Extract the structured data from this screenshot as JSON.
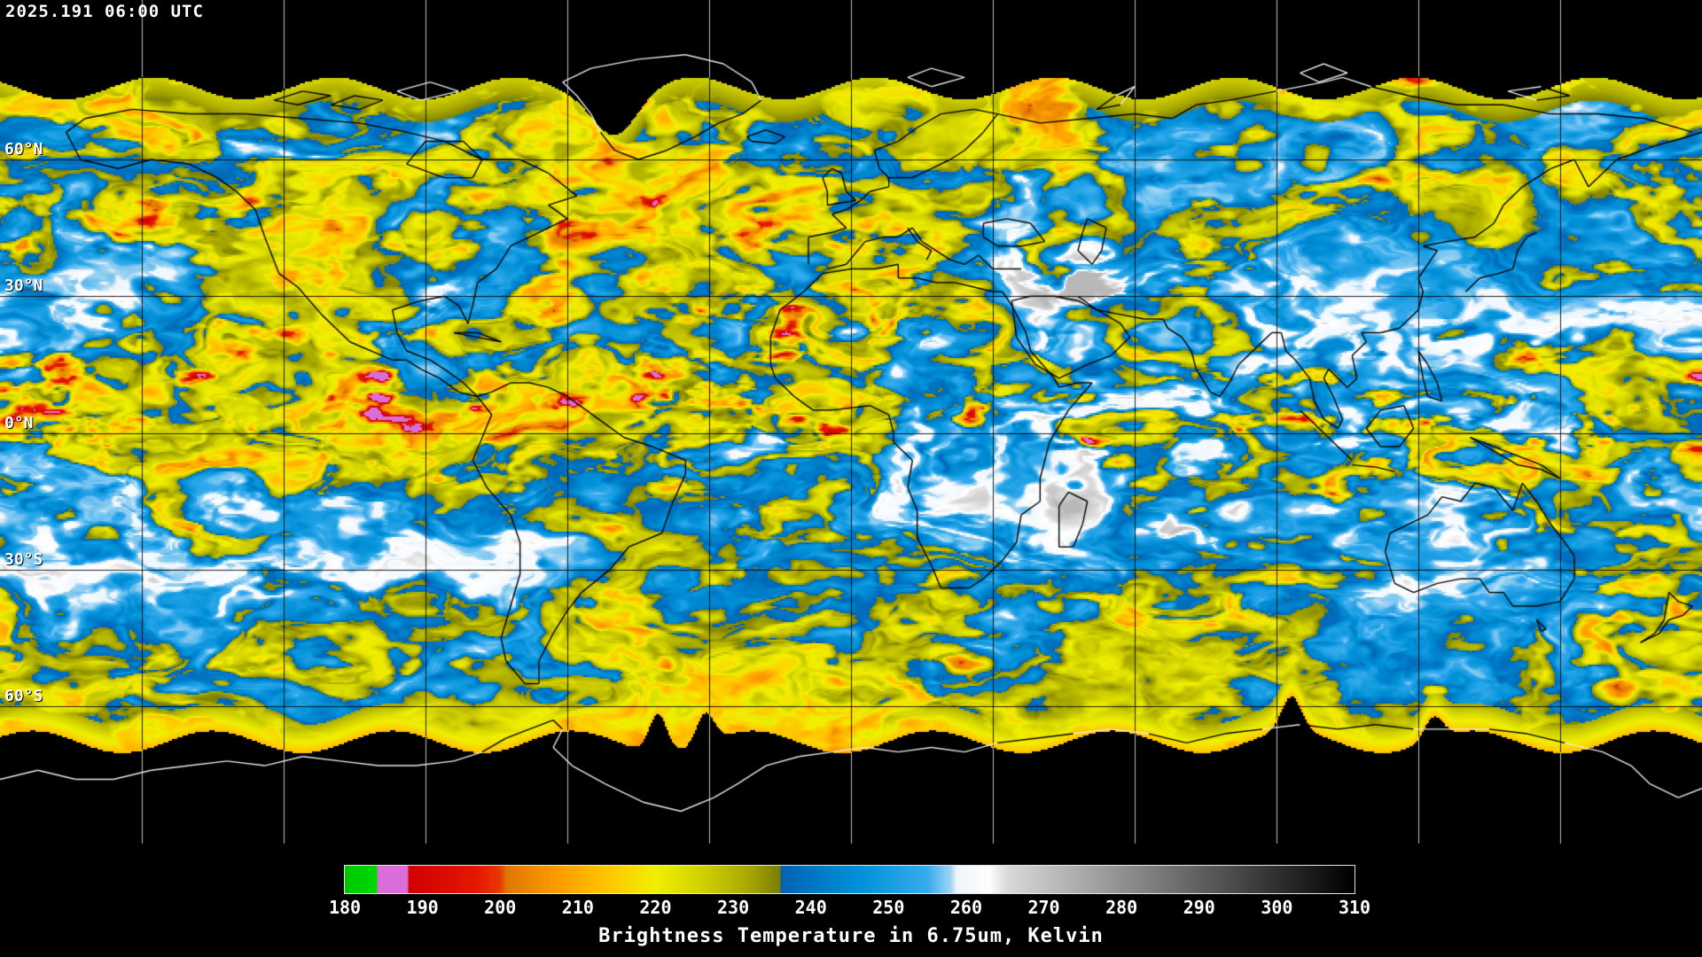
{
  "header": {
    "timestamp": "2025.191 06:00 UTC"
  },
  "map": {
    "projection": "equirectangular",
    "void_color": "#000000",
    "coastline_color_over_data": "#000000",
    "coastline_color_over_void": "#eaeaea",
    "latitude_labels": [
      {
        "label": "60°N",
        "lat": 60
      },
      {
        "label": "30°N",
        "lat": 30
      },
      {
        "label": "0°N",
        "lat": 0
      },
      {
        "label": "30°S",
        "lat": -30
      },
      {
        "label": "60°S",
        "lat": -60
      }
    ],
    "grid": {
      "lon_step_deg": 30,
      "lat_step_deg": 30,
      "line_color_over_data": "#000000",
      "line_color_over_void": "#bebebe"
    },
    "data_extent": {
      "north_lat": 78,
      "south_lat": -70
    }
  },
  "colorbar": {
    "caption": "Brightness Temperature in 6.75um, Kelvin",
    "units": "Kelvin",
    "wavelength": "6.75um",
    "min": 180,
    "max": 310,
    "ticks": [
      180,
      190,
      200,
      210,
      220,
      230,
      240,
      250,
      260,
      270,
      280,
      290,
      300,
      310
    ],
    "colormap_stops": [
      [
        180,
        "#00c800"
      ],
      [
        184,
        "#00d800"
      ],
      [
        184.2,
        "#da6ed8"
      ],
      [
        188,
        "#da6ed8"
      ],
      [
        188.2,
        "#d20000"
      ],
      [
        197,
        "#e61800"
      ],
      [
        200,
        "#e63c00"
      ],
      [
        200.8,
        "#e07800"
      ],
      [
        208,
        "#ffa000"
      ],
      [
        214,
        "#ffc800"
      ],
      [
        220,
        "#f0f000"
      ],
      [
        226,
        "#d2d200"
      ],
      [
        232,
        "#a8a800"
      ],
      [
        236,
        "#7c8000"
      ],
      [
        236.2,
        "#0064b4"
      ],
      [
        246,
        "#0091d8"
      ],
      [
        255,
        "#38acee"
      ],
      [
        258,
        "#9fd4f2"
      ],
      [
        258.8,
        "#eef6fd"
      ],
      [
        263,
        "#ffffff"
      ],
      [
        265.5,
        "#d8d8d8"
      ],
      [
        310,
        "#000000"
      ]
    ]
  }
}
